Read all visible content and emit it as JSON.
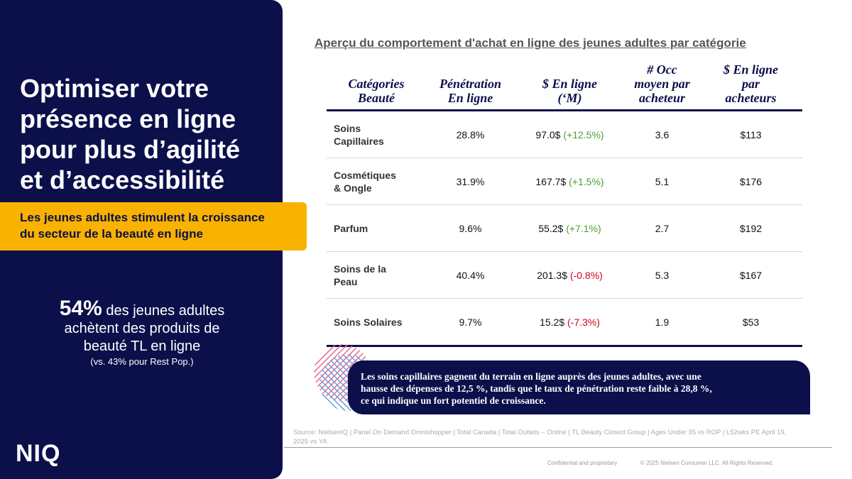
{
  "left": {
    "title_lines": [
      "Optimiser votre",
      "présence en ligne",
      "pour plus d’agilité",
      "et d’accessibilité"
    ],
    "banner_lines": [
      "Les jeunes adultes stimulent la croissance",
      "du secteur de la beauté en ligne"
    ],
    "stat": {
      "number": "54%",
      "lines": [
        "des jeunes adultes",
        "achètent des produits de",
        "beauté TL en ligne"
      ],
      "note": "(vs. 43% pour Rest Pop.)"
    },
    "logo": "NIQ"
  },
  "table": {
    "title": "Aperçu du comportement d'achat en ligne des jeunes adultes par catégorie",
    "headers": [
      [
        "Catégories",
        "Beauté"
      ],
      [
        "Pénétration",
        "En ligne"
      ],
      [
        "$ En ligne",
        "(‘M)"
      ],
      [
        "# Occ",
        "moyen par",
        "acheteur"
      ],
      [
        "$ En ligne",
        "par",
        "acheteurs"
      ]
    ],
    "rows": [
      {
        "category": [
          "Soins",
          "Capillaires"
        ],
        "penetration": "28.8%",
        "online": "97.0$",
        "change": "(+12.5%)",
        "occasions": "3.6",
        "per_buyer": "$113"
      },
      {
        "category": [
          "Cosmétiques",
          "& Ongle"
        ],
        "penetration": "31.9%",
        "online": "167.7$",
        "change": "(+1.5%)",
        "occasions": "5.1",
        "per_buyer": "$176"
      },
      {
        "category": [
          "Parfum"
        ],
        "penetration": "9.6%",
        "online": "55.2$",
        "change": "(+7.1%)",
        "occasions": "2.7",
        "per_buyer": "$192"
      },
      {
        "category": [
          "Soins de la",
          "Peau"
        ],
        "penetration": "40.4%",
        "online": "201.3$",
        "change": "(-0.8%)",
        "occasions": "5.3",
        "per_buyer": "$167"
      },
      {
        "category": [
          "Soins Solaires"
        ],
        "penetration": "9.7%",
        "online": "15.2$",
        "change": "(-7.3%)",
        "occasions": "1.9",
        "per_buyer": "$53"
      }
    ]
  },
  "callout": [
    "Les soins capillaires gagnent du terrain en ligne auprès des jeunes adultes, avec une",
    "hausse des dépenses de 12,5 %, tandis que le taux de pénétration reste faible à 28,8 %,",
    "ce qui indique un fort potentiel de croissance."
  ],
  "source": [
    "Source: NielsenIQ | Panel On Demand Omnishopper | Total Canada | Total Outlets – Online | TL Beauty Closed Group | Ages Under 35 vs ROP | L52wks PE April 19,",
    "2025 vs YA"
  ],
  "footer": {
    "confidential": "Confidential and proprietary",
    "copyright": "© 2025 Nielsen Consumer LLC. All Rights Reserved."
  }
}
